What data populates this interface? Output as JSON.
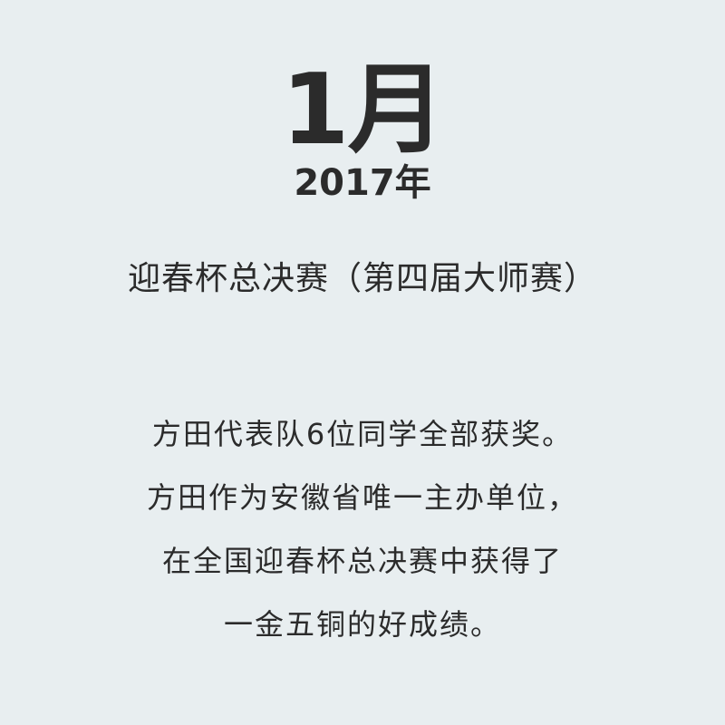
{
  "header": {
    "month": "1月",
    "year": "2017年"
  },
  "event": {
    "title": "迎春杯总决赛（第四届大师赛）"
  },
  "description": {
    "lines": [
      "方田代表队6位同学全部获奖。",
      "方田作为安徽省唯一主办单位，",
      "在全国迎春杯总决赛中获得了",
      "一金五铜的好成绩。"
    ]
  }
}
